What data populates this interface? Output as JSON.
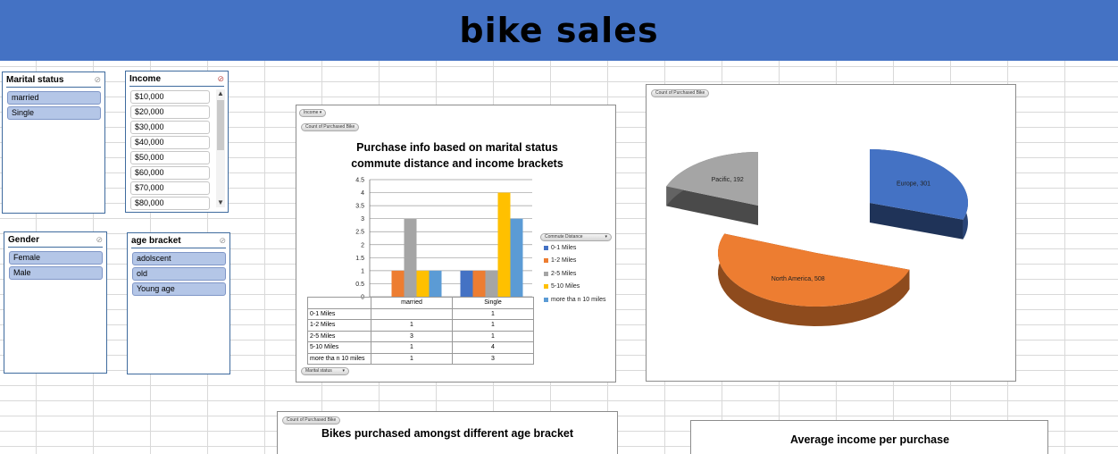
{
  "header": {
    "title": "bike sales"
  },
  "colors": {
    "banner": "#4472c4",
    "blue": "#4472c4",
    "orange": "#ed7d31",
    "gray": "#a5a5a5",
    "yellow": "#ffc000",
    "lightblue": "#5b9bd5"
  },
  "slicers": {
    "marital": {
      "title": "Marital status",
      "items": [
        "married",
        "Single"
      ]
    },
    "income": {
      "title": "Income",
      "items": [
        "$10,000",
        "$20,000",
        "$30,000",
        "$40,000",
        "$50,000",
        "$60,000",
        "$70,000",
        "$80,000"
      ]
    },
    "gender": {
      "title": "Gender",
      "items": [
        "Female",
        "Male"
      ]
    },
    "age": {
      "title": "age bracket",
      "items": [
        "adolscent",
        "old",
        "Young age"
      ]
    }
  },
  "bar_chart": {
    "filter_income": "Income",
    "value_field": "Count of Purchased Bike",
    "axis_field": "Marital status",
    "legend_field": "Commute Distance",
    "chart_data": {
      "type": "bar",
      "title": "Purchase info based on marital  status commute distance and income brackets",
      "categories": [
        "married",
        "Single"
      ],
      "ylim": [
        0,
        4.5
      ],
      "yticks": [
        "0",
        "0.5",
        "1",
        "1.5",
        "2",
        "2.5",
        "3",
        "3.5",
        "4",
        "4.5"
      ],
      "series": [
        {
          "name": "0-1 Miles",
          "values": [
            null,
            1
          ],
          "color": "#4472c4"
        },
        {
          "name": "1-2 Miles",
          "values": [
            1,
            1
          ],
          "color": "#ed7d31"
        },
        {
          "name": "2-5 Miles",
          "values": [
            3,
            1
          ],
          "color": "#a5a5a5"
        },
        {
          "name": "5-10 Miles",
          "values": [
            1,
            4
          ],
          "color": "#ffc000"
        },
        {
          "name": "more tha n 10 miles",
          "values": [
            1,
            3
          ],
          "color": "#5b9bd5"
        }
      ],
      "grid": true,
      "legend": "right"
    }
  },
  "pie_chart": {
    "value_field": "Count of Purchased Bike",
    "chart_data": {
      "type": "pie",
      "slices": [
        {
          "label": "Europe",
          "value": 301,
          "text": "Europe, 301",
          "color": "#4472c4"
        },
        {
          "label": "North America",
          "value": 508,
          "text": "North America, 508",
          "color": "#ed7d31"
        },
        {
          "label": "Pacific",
          "value": 192,
          "text": "Pacific, 192",
          "color": "#a5a5a5"
        }
      ]
    }
  },
  "age_chart": {
    "value_field": "Count of Purchased Bike",
    "title": "Bikes purchased amongst different age bracket"
  },
  "income_chart": {
    "title": "Average income per purchase"
  }
}
